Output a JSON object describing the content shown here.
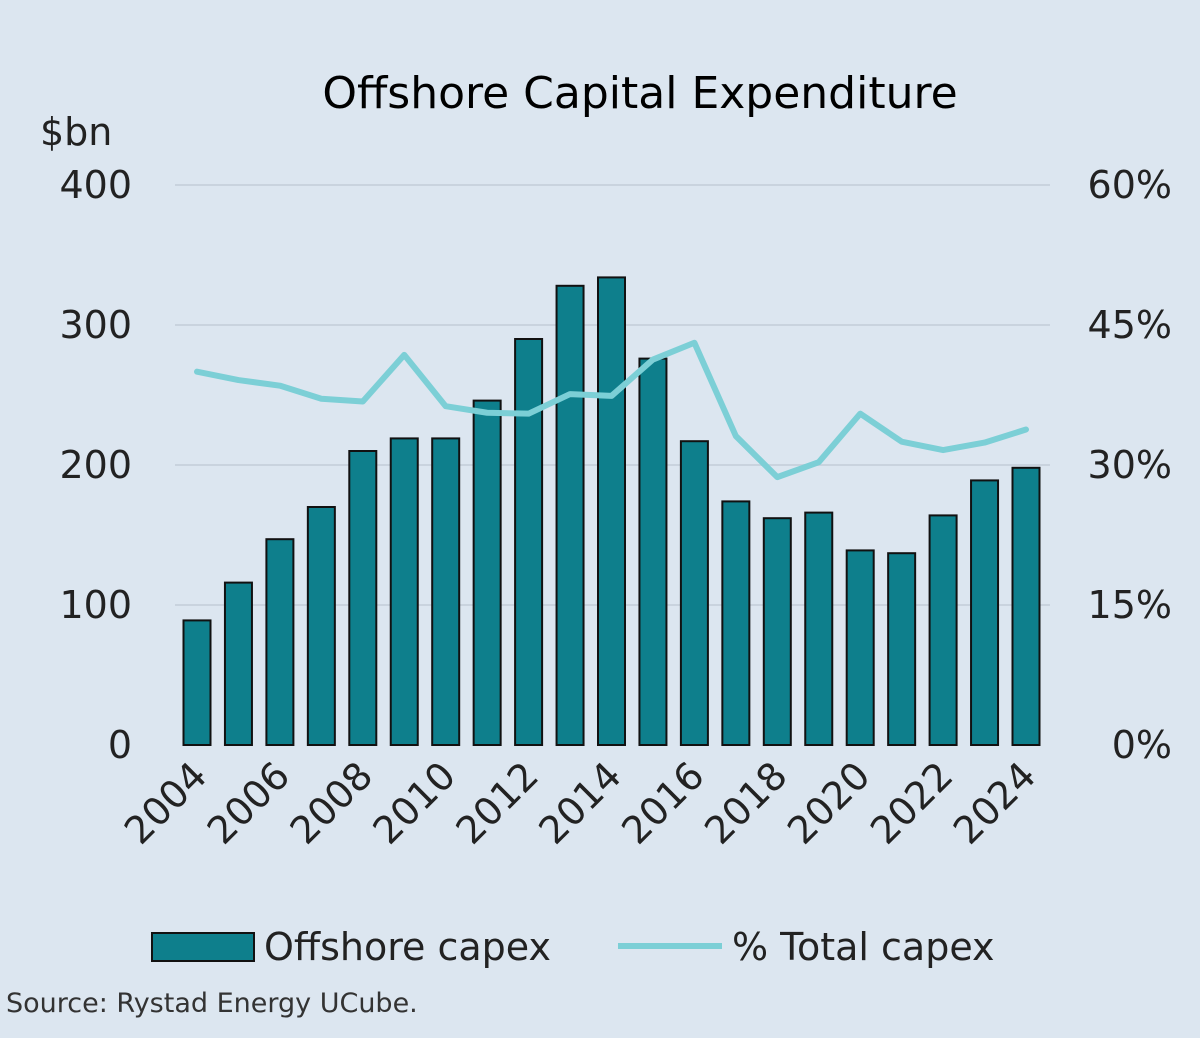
{
  "chart_data": {
    "type": "bar",
    "title": "Offshore Capital Expenditure",
    "ylabel": "$bn",
    "ylim": [
      0,
      400
    ],
    "y2lim": [
      0,
      60
    ],
    "yticks": [
      "0",
      "100",
      "200",
      "300",
      "400"
    ],
    "y2ticks": [
      "0%",
      "15%",
      "30%",
      "45%",
      "60%"
    ],
    "xtick_labels": [
      "2004",
      "2006",
      "2008",
      "2010",
      "2012",
      "2014",
      "2016",
      "2018",
      "2020",
      "2022",
      "2024"
    ],
    "categories": [
      2004,
      2005,
      2006,
      2007,
      2008,
      2009,
      2010,
      2011,
      2012,
      2013,
      2014,
      2015,
      2016,
      2017,
      2018,
      2019,
      2020,
      2021,
      2022,
      2023,
      2024
    ],
    "grid": true,
    "legend_position": "bottom",
    "series": [
      {
        "name": "Offshore capex",
        "type": "bar",
        "axis": "left",
        "color": "#0e7f8c",
        "values": [
          89,
          116,
          147,
          170,
          210,
          219,
          219,
          246,
          290,
          328,
          334,
          276,
          217,
          174,
          162,
          166,
          139,
          137,
          164,
          189,
          198
        ]
      },
      {
        "name": "% Total capex",
        "type": "line",
        "axis": "right",
        "color": "#7ccfd6",
        "values": [
          40.0,
          39.1,
          38.5,
          37.1,
          36.8,
          41.8,
          36.3,
          35.6,
          35.5,
          37.6,
          37.4,
          41.3,
          43.1,
          33.1,
          28.7,
          30.3,
          35.5,
          32.5,
          31.6,
          32.4,
          33.8
        ]
      }
    ],
    "source": "Source: Rystad Energy UCube."
  }
}
